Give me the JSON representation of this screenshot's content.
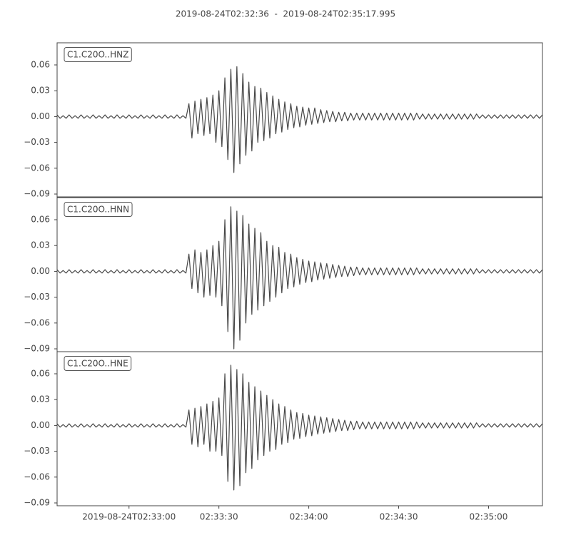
{
  "chart_data": {
    "type": "line",
    "title": "2019-08-24T02:32:36  -  2019-08-24T02:35:17.995",
    "x": [
      9156,
      9157,
      9158,
      9159,
      9160,
      9161,
      9162,
      9163,
      9164,
      9165,
      9166,
      9167,
      9168,
      9169,
      9170,
      9171,
      9172,
      9173,
      9174,
      9175,
      9176,
      9177,
      9178,
      9179,
      9180,
      9181,
      9182,
      9183,
      9184,
      9185,
      9186,
      9187,
      9188,
      9189,
      9190,
      9191,
      9192,
      9193,
      9194,
      9195,
      9196,
      9197,
      9198,
      9199,
      9200,
      9201,
      9202,
      9203,
      9204,
      9205,
      9206,
      9207,
      9208,
      9209,
      9210,
      9211,
      9212,
      9213,
      9214,
      9215,
      9216,
      9217,
      9218,
      9219,
      9220,
      9221,
      9222,
      9223,
      9224,
      9225,
      9226,
      9227,
      9228,
      9229,
      9230,
      9231,
      9232,
      9233,
      9234,
      9235,
      9236,
      9237,
      9238,
      9239,
      9240,
      9241,
      9242,
      9243,
      9244,
      9245,
      9246,
      9247,
      9248,
      9249,
      9250,
      9251,
      9252,
      9253,
      9254,
      9255,
      9256,
      9257,
      9258,
      9259,
      9260,
      9261,
      9262,
      9263,
      9264,
      9265,
      9266,
      9267,
      9268,
      9269,
      9270,
      9271,
      9272,
      9273,
      9274,
      9275,
      9276,
      9277,
      9278,
      9279,
      9280,
      9281,
      9282,
      9283,
      9284,
      9285,
      9286,
      9287,
      9288,
      9289,
      9290,
      9291,
      9292,
      9293,
      9294,
      9295,
      9296,
      9297,
      9298,
      9299,
      9300,
      9301,
      9302,
      9303,
      9304,
      9305,
      9306,
      9307,
      9308,
      9309,
      9310,
      9311,
      9312,
      9313,
      9314,
      9315,
      9316,
      9317,
      9318
    ],
    "xlim": [
      9156,
      9317.995
    ],
    "xticks": [
      {
        "value": 9180,
        "label": "2019-08-24T02:33:00"
      },
      {
        "value": 9210,
        "label": "02:33:30"
      },
      {
        "value": 9240,
        "label": "02:34:00"
      },
      {
        "value": 9270,
        "label": "02:34:30"
      },
      {
        "value": 9300,
        "label": "02:35:00"
      }
    ],
    "ylim": [
      -0.0933,
      0.0857
    ],
    "yticks": [
      {
        "value": 0.06,
        "label": "0.06"
      },
      {
        "value": 0.03,
        "label": "0.03"
      },
      {
        "value": 0,
        "label": "0.00"
      },
      {
        "value": -0.03,
        "label": "−0.03"
      },
      {
        "value": -0.06,
        "label": "−0.06"
      },
      {
        "value": -0.09,
        "label": "−0.09"
      }
    ],
    "series": [
      {
        "name": "C1.C20O..HNZ",
        "color": "#474747",
        "values": [
          0.002,
          -0.002,
          0.001,
          -0.002,
          0.002,
          -0.002,
          0.001,
          -0.002,
          0.002,
          -0.002,
          0.001,
          -0.002,
          0.002,
          -0.002,
          0.001,
          -0.002,
          0.002,
          -0.002,
          0.001,
          -0.002,
          0.002,
          -0.002,
          0.001,
          -0.002,
          0.002,
          -0.002,
          0.001,
          -0.002,
          0.002,
          -0.002,
          0.001,
          -0.002,
          0.002,
          -0.002,
          0.001,
          -0.002,
          0.002,
          -0.002,
          0.001,
          -0.002,
          0.002,
          -0.002,
          0.001,
          -0.002,
          0.015,
          -0.025,
          0.018,
          -0.02,
          0.02,
          -0.022,
          0.022,
          -0.02,
          0.025,
          -0.03,
          0.03,
          -0.035,
          0.045,
          -0.05,
          0.055,
          -0.065,
          0.058,
          -0.055,
          0.05,
          -0.045,
          0.04,
          -0.04,
          0.035,
          -0.03,
          0.033,
          -0.028,
          0.028,
          -0.025,
          0.024,
          -0.02,
          0.02,
          -0.018,
          0.017,
          -0.015,
          0.015,
          -0.013,
          0.012,
          -0.012,
          0.011,
          -0.01,
          0.01,
          -0.009,
          0.01,
          -0.008,
          0.008,
          -0.007,
          0.007,
          -0.006,
          0.006,
          -0.006,
          0.005,
          -0.005,
          0.005,
          -0.005,
          0.004,
          -0.004,
          0.004,
          -0.004,
          0.004,
          -0.004,
          0.004,
          -0.004,
          0.004,
          -0.004,
          0.004,
          -0.004,
          0.004,
          -0.004,
          0.004,
          -0.004,
          0.004,
          -0.004,
          0.004,
          -0.004,
          0.004,
          -0.004,
          0.004,
          -0.003,
          0.003,
          -0.003,
          0.003,
          -0.003,
          0.003,
          -0.003,
          0.003,
          -0.003,
          0.003,
          -0.003,
          0.003,
          -0.003,
          0.003,
          -0.003,
          0.003,
          -0.003,
          0.003,
          -0.003,
          0.003,
          -0.002,
          0.002,
          -0.002,
          0.002,
          -0.002,
          0.002,
          -0.002,
          0.002,
          -0.002,
          0.002,
          -0.002,
          0.002,
          -0.002,
          0.002,
          -0.002,
          0.002,
          -0.002,
          0.002,
          -0.002,
          0.002,
          -0.002,
          0.002
        ]
      },
      {
        "name": "C1.C20O..HNN",
        "color": "#474747",
        "values": [
          0.002,
          -0.002,
          0.001,
          -0.002,
          0.002,
          -0.002,
          0.001,
          -0.002,
          0.002,
          -0.002,
          0.001,
          -0.002,
          0.002,
          -0.002,
          0.001,
          -0.002,
          0.002,
          -0.002,
          0.001,
          -0.002,
          0.002,
          -0.002,
          0.001,
          -0.002,
          0.002,
          -0.002,
          0.001,
          -0.002,
          0.002,
          -0.002,
          0.001,
          -0.002,
          0.002,
          -0.002,
          0.001,
          -0.002,
          0.002,
          -0.002,
          0.001,
          -0.002,
          0.002,
          -0.002,
          0.001,
          -0.002,
          0.02,
          -0.02,
          0.025,
          -0.025,
          0.022,
          -0.03,
          0.025,
          -0.028,
          0.03,
          -0.03,
          0.035,
          -0.04,
          0.06,
          -0.07,
          0.075,
          -0.09,
          0.07,
          -0.08,
          0.065,
          -0.06,
          0.055,
          -0.05,
          0.05,
          -0.045,
          0.045,
          -0.04,
          0.035,
          -0.035,
          0.03,
          -0.03,
          0.028,
          -0.025,
          0.022,
          -0.02,
          0.02,
          -0.018,
          0.016,
          -0.015,
          0.014,
          -0.013,
          0.012,
          -0.012,
          0.011,
          -0.01,
          0.01,
          -0.009,
          0.009,
          -0.008,
          0.008,
          -0.007,
          0.007,
          -0.006,
          0.006,
          -0.006,
          0.005,
          -0.005,
          0.005,
          -0.004,
          0.004,
          -0.004,
          0.004,
          -0.004,
          0.004,
          -0.004,
          0.004,
          -0.004,
          0.004,
          -0.004,
          0.004,
          -0.004,
          0.004,
          -0.004,
          0.004,
          -0.004,
          0.004,
          -0.004,
          0.004,
          -0.003,
          0.003,
          -0.003,
          0.003,
          -0.003,
          0.003,
          -0.003,
          0.003,
          -0.003,
          0.003,
          -0.003,
          0.003,
          -0.003,
          0.003,
          -0.003,
          0.003,
          -0.003,
          0.003,
          -0.003,
          0.003,
          -0.002,
          0.002,
          -0.002,
          0.002,
          -0.002,
          0.002,
          -0.002,
          0.002,
          -0.002,
          0.002,
          -0.002,
          0.002,
          -0.002,
          0.002,
          -0.002,
          0.002,
          -0.002,
          0.002,
          -0.002,
          0.002,
          -0.002,
          0.002
        ]
      },
      {
        "name": "C1.C20O..HNE",
        "color": "#474747",
        "values": [
          0.002,
          -0.002,
          0.001,
          -0.002,
          0.002,
          -0.002,
          0.001,
          -0.002,
          0.002,
          -0.002,
          0.001,
          -0.002,
          0.002,
          -0.002,
          0.001,
          -0.002,
          0.002,
          -0.002,
          0.001,
          -0.002,
          0.002,
          -0.002,
          0.001,
          -0.002,
          0.002,
          -0.002,
          0.001,
          -0.002,
          0.002,
          -0.002,
          0.001,
          -0.002,
          0.002,
          -0.002,
          0.001,
          -0.002,
          0.002,
          -0.002,
          0.001,
          -0.002,
          0.002,
          -0.002,
          0.001,
          -0.002,
          0.018,
          -0.022,
          0.02,
          -0.025,
          0.022,
          -0.022,
          0.025,
          -0.03,
          0.028,
          -0.03,
          0.032,
          -0.035,
          0.06,
          -0.065,
          0.07,
          -0.075,
          0.065,
          -0.07,
          0.06,
          -0.055,
          0.05,
          -0.05,
          0.045,
          -0.04,
          0.04,
          -0.035,
          0.035,
          -0.03,
          0.03,
          -0.028,
          0.025,
          -0.022,
          0.022,
          -0.02,
          0.018,
          -0.016,
          0.015,
          -0.015,
          0.014,
          -0.013,
          0.012,
          -0.012,
          0.011,
          -0.01,
          0.01,
          -0.009,
          0.009,
          -0.008,
          0.008,
          -0.007,
          0.007,
          -0.006,
          0.006,
          -0.006,
          0.005,
          -0.005,
          0.005,
          -0.004,
          0.004,
          -0.004,
          0.004,
          -0.004,
          0.004,
          -0.004,
          0.004,
          -0.004,
          0.004,
          -0.004,
          0.004,
          -0.004,
          0.004,
          -0.004,
          0.004,
          -0.004,
          0.004,
          -0.004,
          0.004,
          -0.003,
          0.003,
          -0.003,
          0.003,
          -0.003,
          0.003,
          -0.003,
          0.003,
          -0.003,
          0.003,
          -0.003,
          0.003,
          -0.003,
          0.003,
          -0.003,
          0.003,
          -0.003,
          0.003,
          -0.003,
          0.003,
          -0.002,
          0.002,
          -0.002,
          0.002,
          -0.002,
          0.002,
          -0.002,
          0.002,
          -0.002,
          0.002,
          -0.002,
          0.002,
          -0.002,
          0.002,
          -0.002,
          0.002,
          -0.002,
          0.002,
          -0.002,
          0.002,
          -0.002,
          0.002
        ]
      }
    ]
  }
}
